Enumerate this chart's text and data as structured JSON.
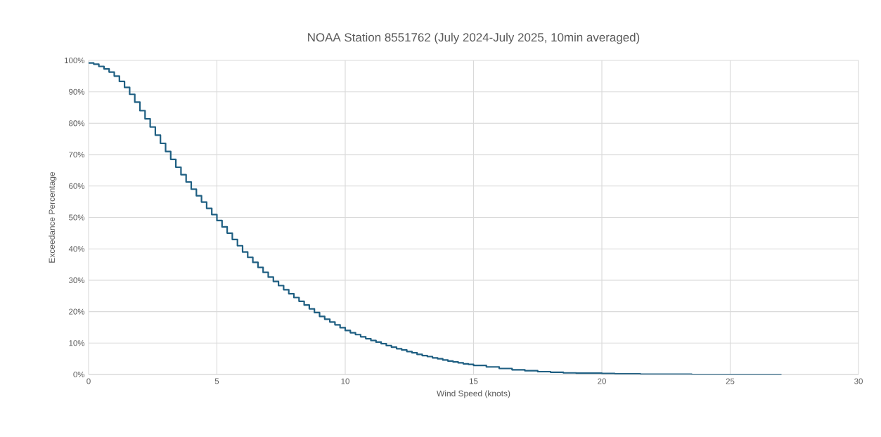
{
  "chart_data": {
    "type": "step",
    "title": "NOAA Station 8551762 (July 2024-July 2025, 10min averaged)",
    "xlabel": "Wind Speed (knots)",
    "ylabel": "Exceedance Percentage",
    "xlim": [
      0,
      30
    ],
    "xticks": [
      0,
      5,
      10,
      15,
      20,
      25,
      30
    ],
    "ylim": [
      0,
      100
    ],
    "yticks": [
      {
        "value": 0,
        "label": "0%"
      },
      {
        "value": 10,
        "label": "10%"
      },
      {
        "value": 20,
        "label": "20%"
      },
      {
        "value": 30,
        "label": "30%"
      },
      {
        "value": 40,
        "label": "40%"
      },
      {
        "value": 50,
        "label": "50%"
      },
      {
        "value": 60,
        "label": "60%"
      },
      {
        "value": 70,
        "label": "70%"
      },
      {
        "value": 80,
        "label": "80%"
      },
      {
        "value": 90,
        "label": "90%"
      },
      {
        "value": 100,
        "label": "100%"
      }
    ],
    "grid": true,
    "marker": "none",
    "line_style": "solid",
    "series": [
      {
        "color": "#1f5f82",
        "x": [
          0,
          0.2,
          0.4,
          0.6,
          0.8,
          1,
          1.2,
          1.4,
          1.6,
          1.8,
          2,
          2.2,
          2.4,
          2.6,
          2.8,
          3,
          3.2,
          3.4,
          3.6,
          3.8,
          4,
          4.2,
          4.4,
          4.6,
          4.8,
          5,
          5.2,
          5.4,
          5.6,
          5.8,
          6,
          6.2,
          6.4,
          6.6,
          6.8,
          7,
          7.2,
          7.4,
          7.6,
          7.8,
          8,
          8.2,
          8.4,
          8.6,
          8.8,
          9,
          9.2,
          9.4,
          9.6,
          9.8,
          10,
          10.2,
          10.4,
          10.6,
          10.8,
          11,
          11.2,
          11.4,
          11.6,
          11.8,
          12,
          12.2,
          12.4,
          12.6,
          12.8,
          13,
          13.2,
          13.4,
          13.6,
          13.8,
          14,
          14.2,
          14.4,
          14.6,
          14.8,
          15,
          15.5,
          16,
          16.5,
          17,
          17.5,
          18,
          18.5,
          19,
          19.5,
          20,
          20.5,
          21,
          21.5,
          22,
          22.5,
          23,
          23.5,
          24,
          24.5,
          25,
          25.5,
          26,
          26.5,
          27
        ],
        "values": [
          99.2,
          98.8,
          98.1,
          97.3,
          96.3,
          95,
          93.3,
          91.4,
          89.2,
          86.7,
          84,
          81.4,
          78.8,
          76.2,
          73.6,
          71,
          68.5,
          66,
          63.6,
          61.3,
          59,
          56.9,
          54.9,
          52.9,
          50.9,
          49,
          47,
          45,
          43,
          41,
          39,
          37.3,
          35.7,
          34.1,
          32.5,
          31,
          29.6,
          28.3,
          27,
          25.7,
          24.5,
          23.3,
          22.1,
          20.9,
          19.7,
          18.5,
          17.6,
          16.7,
          15.8,
          14.9,
          14,
          13.3,
          12.7,
          12,
          11.4,
          10.8,
          10.3,
          9.8,
          9.2,
          8.7,
          8.2,
          7.8,
          7.3,
          6.9,
          6.4,
          6,
          5.7,
          5.3,
          5,
          4.6,
          4.3,
          4,
          3.7,
          3.4,
          3.2,
          2.9,
          2.4,
          1.9,
          1.5,
          1.2,
          0.9,
          0.7,
          0.5,
          0.4,
          0.4,
          0.3,
          0.2,
          0.2,
          0.1,
          0.1,
          0.1,
          0.1,
          0,
          0,
          0,
          0,
          0,
          0,
          0,
          0
        ]
      }
    ]
  }
}
